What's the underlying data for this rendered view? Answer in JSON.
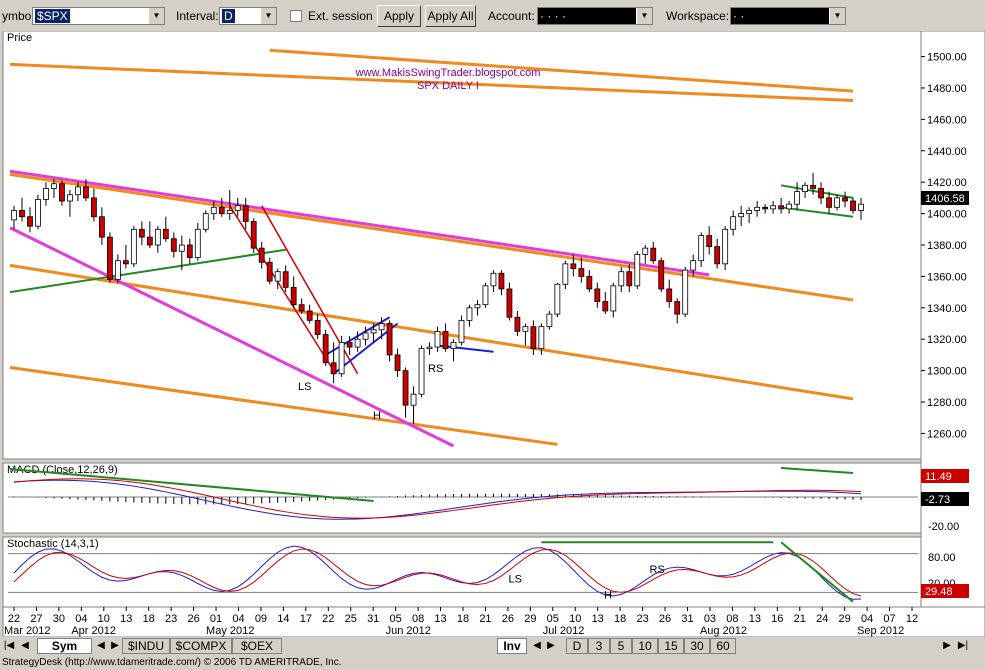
{
  "toolbar": {
    "symbol_label": "ymbol:",
    "symbol_value": "$SPX",
    "interval_label": "Interval:",
    "interval_value": "D",
    "ext_session_label": "Ext. session",
    "apply_label": "Apply",
    "apply_all_label": "Apply All",
    "account_label": "Account:",
    "account_value": "·   ·   ·   ·",
    "workspace_label": "Workspace:",
    "workspace_value": "·   ·"
  },
  "tabs": {
    "sym_label": "Sym",
    "symbols": [
      "$INDU",
      "$COMPX",
      "$OEX"
    ],
    "inv_label": "Inv",
    "intervals": [
      "D",
      "3",
      "5",
      "10",
      "15",
      "30",
      "60"
    ]
  },
  "status_text": "StrategyDesk (http://www.tdameritrade.com/) © 2006 TD AMERITRADE, Inc.",
  "colors": {
    "background": "#ffffff",
    "up_candle": "#ffffff",
    "down_candle": "#cc0000",
    "channel_orange": "#f08a1e",
    "trend_magenta": "#e23bd8",
    "trend_green": "#228822",
    "flag_blue": "#1f1fd0",
    "wedge_red": "#cc0000",
    "last_price_bg": "#000000"
  },
  "chart_data": [
    {
      "type": "candlestick",
      "label": "Price",
      "watermark": [
        "www.MakisSwingTrader.blogspot.com",
        "SPX DAILY I"
      ],
      "last_price": "1406.58",
      "ylim": [
        1245,
        1515
      ],
      "y_ticks": [
        1260,
        1280,
        1300,
        1320,
        1340,
        1360,
        1380,
        1400,
        1420,
        1440,
        1460,
        1480,
        1500
      ],
      "y_tick_labels": [
        "1260.00",
        "1280.00",
        "1300.00",
        "1320.00",
        "1340.00",
        "1360.00",
        "1380.00",
        "1400.00",
        "1420.00",
        "1440.00",
        "1460.00",
        "1480.00",
        "1500.00"
      ],
      "x_day_labels": [
        "22",
        "27",
        "30",
        "04",
        "10",
        "13",
        "18",
        "23",
        "26",
        "01",
        "04",
        "09",
        "14",
        "17",
        "22",
        "25",
        "31",
        "05",
        "08",
        "13",
        "18",
        "21",
        "26",
        "29",
        "05",
        "10",
        "13",
        "18",
        "23",
        "26",
        "31",
        "03",
        "08",
        "13",
        "16",
        "21",
        "24",
        "29",
        "04",
        "07",
        "12"
      ],
      "x_month_labels": [
        "Mar 2012",
        "Apr 2012",
        "May 2012",
        "Jun 2012",
        "Jul 2012",
        "Aug 2012",
        "Sep 2012"
      ],
      "annotations": [
        "LS",
        "H",
        "RS"
      ],
      "candles": [
        [
          1396,
          1405,
          1390,
          1402
        ],
        [
          1402,
          1410,
          1395,
          1398
        ],
        [
          1398,
          1404,
          1388,
          1392
        ],
        [
          1392,
          1412,
          1390,
          1409
        ],
        [
          1409,
          1420,
          1405,
          1416
        ],
        [
          1416,
          1422,
          1410,
          1419
        ],
        [
          1419,
          1421,
          1405,
          1408
        ],
        [
          1408,
          1415,
          1398,
          1412
        ],
        [
          1412,
          1420,
          1408,
          1417
        ],
        [
          1417,
          1422,
          1408,
          1410
        ],
        [
          1410,
          1416,
          1395,
          1398
        ],
        [
          1398,
          1404,
          1380,
          1385
        ],
        [
          1385,
          1388,
          1356,
          1358
        ],
        [
          1358,
          1374,
          1356,
          1370
        ],
        [
          1370,
          1380,
          1365,
          1368
        ],
        [
          1368,
          1392,
          1366,
          1390
        ],
        [
          1390,
          1395,
          1380,
          1385
        ],
        [
          1385,
          1395,
          1378,
          1380
        ],
        [
          1380,
          1392,
          1375,
          1390
        ],
        [
          1390,
          1398,
          1382,
          1384
        ],
        [
          1384,
          1388,
          1372,
          1376
        ],
        [
          1376,
          1386,
          1364,
          1380
        ],
        [
          1380,
          1384,
          1368,
          1372
        ],
        [
          1372,
          1394,
          1370,
          1390
        ],
        [
          1390,
          1402,
          1388,
          1400
        ],
        [
          1400,
          1408,
          1396,
          1404
        ],
        [
          1404,
          1410,
          1398,
          1400
        ],
        [
          1400,
          1415,
          1396,
          1402
        ],
        [
          1402,
          1410,
          1398,
          1405
        ],
        [
          1405,
          1410,
          1390,
          1395
        ],
        [
          1395,
          1397,
          1375,
          1378
        ],
        [
          1378,
          1382,
          1365,
          1369
        ],
        [
          1369,
          1372,
          1355,
          1357
        ],
        [
          1357,
          1365,
          1352,
          1363
        ],
        [
          1363,
          1367,
          1350,
          1353
        ],
        [
          1353,
          1360,
          1340,
          1342
        ],
        [
          1342,
          1346,
          1336,
          1338
        ],
        [
          1338,
          1342,
          1330,
          1332
        ],
        [
          1332,
          1336,
          1320,
          1323
        ],
        [
          1323,
          1326,
          1303,
          1305
        ],
        [
          1305,
          1318,
          1292,
          1298
        ],
        [
          1298,
          1322,
          1296,
          1318
        ],
        [
          1318,
          1322,
          1310,
          1315
        ],
        [
          1315,
          1325,
          1312,
          1320
        ],
        [
          1320,
          1328,
          1316,
          1324
        ],
        [
          1324,
          1330,
          1318,
          1326
        ],
        [
          1326,
          1334,
          1320,
          1330
        ],
        [
          1330,
          1332,
          1306,
          1310
        ],
        [
          1310,
          1314,
          1296,
          1300
        ],
        [
          1300,
          1302,
          1270,
          1278
        ],
        [
          1278,
          1290,
          1266,
          1285
        ],
        [
          1285,
          1316,
          1283,
          1314
        ],
        [
          1314,
          1318,
          1310,
          1315
        ],
        [
          1315,
          1328,
          1312,
          1325
        ],
        [
          1325,
          1330,
          1312,
          1314
        ],
        [
          1314,
          1320,
          1306,
          1318
        ],
        [
          1318,
          1335,
          1316,
          1332
        ],
        [
          1332,
          1342,
          1328,
          1340
        ],
        [
          1340,
          1345,
          1335,
          1342
        ],
        [
          1342,
          1356,
          1340,
          1354
        ],
        [
          1354,
          1364,
          1350,
          1362
        ],
        [
          1362,
          1364,
          1348,
          1352
        ],
        [
          1352,
          1356,
          1332,
          1334
        ],
        [
          1334,
          1338,
          1322,
          1325
        ],
        [
          1325,
          1330,
          1316,
          1328
        ],
        [
          1328,
          1332,
          1310,
          1314
        ],
        [
          1314,
          1330,
          1310,
          1328
        ],
        [
          1328,
          1338,
          1326,
          1336
        ],
        [
          1336,
          1356,
          1334,
          1355
        ],
        [
          1355,
          1370,
          1352,
          1368
        ],
        [
          1368,
          1374,
          1360,
          1365
        ],
        [
          1365,
          1372,
          1356,
          1360
        ],
        [
          1360,
          1364,
          1350,
          1352
        ],
        [
          1352,
          1356,
          1340,
          1344
        ],
        [
          1344,
          1350,
          1336,
          1338
        ],
        [
          1338,
          1356,
          1334,
          1354
        ],
        [
          1354,
          1366,
          1350,
          1363
        ],
        [
          1363,
          1368,
          1350,
          1354
        ],
        [
          1354,
          1376,
          1352,
          1374
        ],
        [
          1374,
          1380,
          1368,
          1378
        ],
        [
          1378,
          1382,
          1368,
          1370
        ],
        [
          1370,
          1372,
          1350,
          1352
        ],
        [
          1352,
          1358,
          1340,
          1344
        ],
        [
          1344,
          1346,
          1330,
          1336
        ],
        [
          1336,
          1366,
          1334,
          1364
        ],
        [
          1364,
          1374,
          1360,
          1370
        ],
        [
          1370,
          1388,
          1366,
          1386
        ],
        [
          1386,
          1392,
          1374,
          1379
        ],
        [
          1379,
          1384,
          1365,
          1368
        ],
        [
          1368,
          1392,
          1364,
          1390
        ],
        [
          1390,
          1402,
          1386,
          1398
        ],
        [
          1398,
          1405,
          1392,
          1400
        ],
        [
          1400,
          1404,
          1394,
          1402
        ],
        [
          1402,
          1408,
          1398,
          1404
        ],
        [
          1404,
          1406,
          1400,
          1403
        ],
        [
          1403,
          1408,
          1400,
          1405
        ],
        [
          1405,
          1410,
          1400,
          1403
        ],
        [
          1403,
          1408,
          1400,
          1406
        ],
        [
          1406,
          1420,
          1402,
          1414
        ],
        [
          1414,
          1420,
          1410,
          1418
        ],
        [
          1418,
          1426,
          1412,
          1416
        ],
        [
          1416,
          1420,
          1406,
          1410
        ],
        [
          1410,
          1414,
          1400,
          1404
        ],
        [
          1404,
          1412,
          1402,
          1410
        ],
        [
          1410,
          1414,
          1404,
          1408
        ],
        [
          1408,
          1410,
          1400,
          1402
        ],
        [
          1402,
          1410,
          1396,
          1406
        ]
      ]
    },
    {
      "type": "line",
      "label": "MACD (Close,12,26,9)",
      "values_shown": [
        "11.49",
        "-2.73"
      ],
      "y_tick_labels": [
        "-20.00"
      ],
      "ylim": [
        -22,
        20
      ]
    },
    {
      "type": "line",
      "label": "Stochastic (14,3,1)",
      "values_shown": [
        "29.48"
      ],
      "y_tick_labels": [
        "80.00",
        "20.00"
      ],
      "ylim": [
        0,
        100
      ]
    }
  ]
}
